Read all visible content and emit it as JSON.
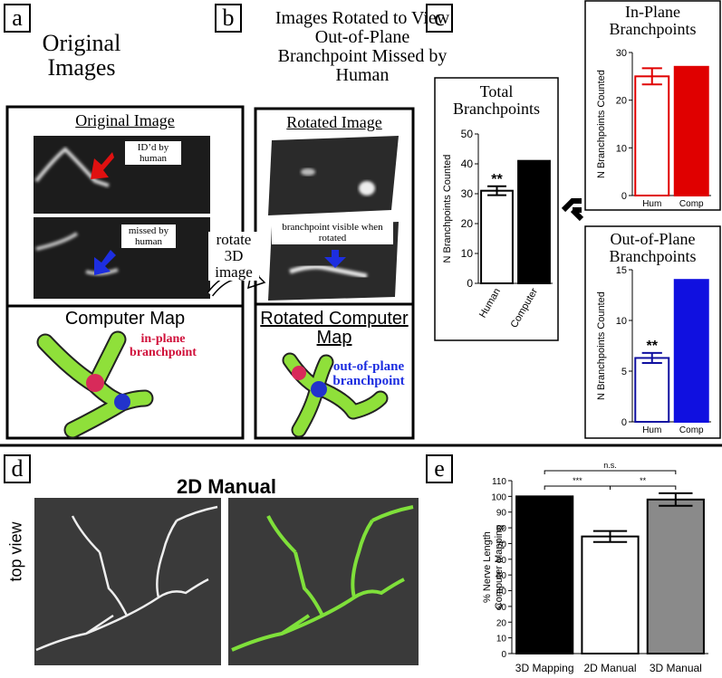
{
  "panel_labels": [
    "a",
    "b",
    "c",
    "d",
    "e"
  ],
  "panel_a": {
    "title": "Original Images",
    "image_heading": "Original Image",
    "callout_top": "ID’d by human",
    "callout_bottom": "missed by human",
    "map_heading": "Computer Map",
    "map_callout": "in-plane branchpoint"
  },
  "rotate_label": "rotate 3D image",
  "panel_b": {
    "title": "Images Rotated to View Out-of-Plane Branchpoint Missed by Human",
    "image_heading": "Rotated Image",
    "callout": "branchpoint visible when rotated",
    "map_heading": "Rotated Computer Map",
    "map_callout": "out-of-plane branchpoint"
  },
  "panel_d": {
    "title": "2D Manual",
    "side_label": "top view"
  },
  "chart_data": [
    {
      "type": "bar",
      "title": "Total Branchpoints",
      "ylabel": "N Branchpoints Counted",
      "categories": [
        "Human",
        "Computer"
      ],
      "values": [
        31,
        41
      ],
      "errors": [
        1.5,
        null
      ],
      "colors": [
        "#ffffff",
        "#000000"
      ],
      "edge_colors": [
        "#000000",
        "#000000"
      ],
      "bar_labels": [
        "**",
        null
      ],
      "ylim": [
        0,
        50
      ],
      "yticks": [
        0,
        10,
        20,
        30,
        40,
        50
      ]
    },
    {
      "type": "bar",
      "title": "In-Plane Branchpoints",
      "ylabel": "N Branchpoints Counted",
      "categories": [
        "Hum",
        "Comp"
      ],
      "values": [
        25,
        27
      ],
      "errors": [
        1.7,
        null
      ],
      "colors": [
        "#ffffff",
        "#e00000"
      ],
      "edge_colors": [
        "#e00000",
        "#e00000"
      ],
      "ylim": [
        0,
        30
      ],
      "yticks": [
        0,
        10,
        20,
        30
      ]
    },
    {
      "type": "bar",
      "title": "Out-of-Plane Branchpoints",
      "ylabel": "N Branchpoints Counted",
      "categories": [
        "Hum",
        "Comp"
      ],
      "values": [
        6.3,
        14
      ],
      "errors": [
        0.5,
        null
      ],
      "colors": [
        "#ffffff",
        "#1010e0"
      ],
      "edge_colors": [
        "#1010a0",
        "#1010e0"
      ],
      "bar_labels": [
        "**",
        null
      ],
      "ylim": [
        0,
        15
      ],
      "yticks": [
        0,
        5,
        10,
        15
      ]
    },
    {
      "type": "bar",
      "ylabel": [
        "% Nerve Length",
        "Computer Mapping"
      ],
      "categories": [
        "3D Mapping",
        "2D Manual",
        "3D Manual"
      ],
      "values": [
        100,
        74.5,
        98
      ],
      "errors": [
        null,
        3.5,
        4
      ],
      "colors": [
        "#000000",
        "#ffffff",
        "#8a8a8a"
      ],
      "edge_colors": [
        "#000000",
        "#000000",
        "#000000"
      ],
      "significance": [
        "n.s.",
        "***",
        "**"
      ],
      "ylim": [
        0,
        110
      ],
      "yticks": [
        0,
        10,
        20,
        30,
        40,
        50,
        60,
        70,
        80,
        90,
        100,
        110
      ]
    }
  ]
}
